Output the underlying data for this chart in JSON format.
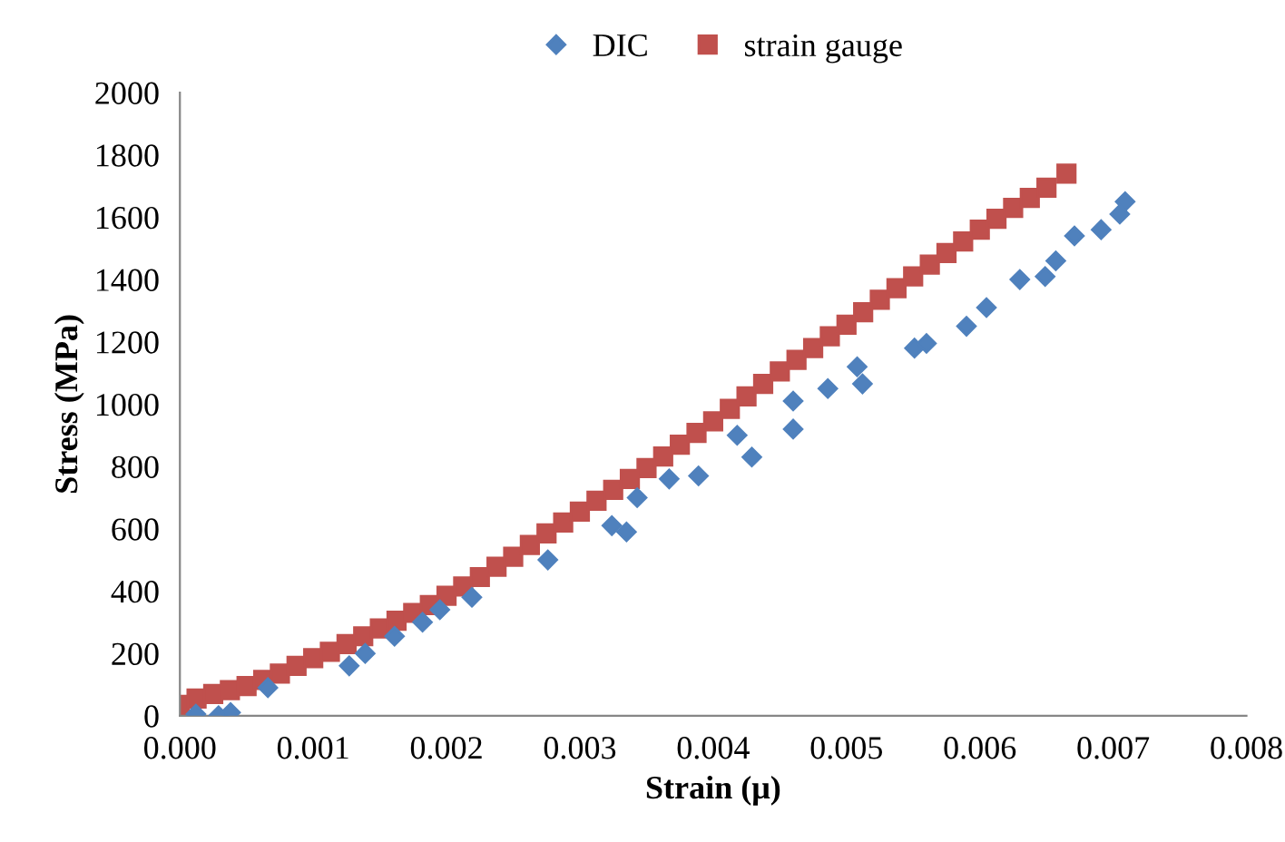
{
  "chart_data": {
    "type": "scatter",
    "xlabel": "Strain (μ)",
    "ylabel": "Stress (MPa)",
    "xlim": [
      0,
      0.008
    ],
    "ylim": [
      0,
      2000
    ],
    "xticks": [
      {
        "value": 0,
        "label": "0.000"
      },
      {
        "value": 0.001,
        "label": "0.001"
      },
      {
        "value": 0.002,
        "label": "0.002"
      },
      {
        "value": 0.003,
        "label": "0.003"
      },
      {
        "value": 0.004,
        "label": "0.004"
      },
      {
        "value": 0.005,
        "label": "0.005"
      },
      {
        "value": 0.006,
        "label": "0.006"
      },
      {
        "value": 0.007,
        "label": "0.007"
      },
      {
        "value": 0.008,
        "label": "0.008"
      }
    ],
    "yticks": [
      0,
      200,
      400,
      600,
      800,
      1000,
      1200,
      1400,
      1600,
      1800,
      2000
    ],
    "grid": false,
    "legend": "top",
    "series": [
      {
        "name": "DIC",
        "color": "#4f81bd",
        "marker": "diamond",
        "x": [
          0.00012,
          0.00029,
          0.00038,
          0.00066,
          0.00127,
          0.00139,
          0.00161,
          0.00182,
          0.00195,
          0.00219,
          0.00276,
          0.00324,
          0.00335,
          0.00343,
          0.00367,
          0.00389,
          0.00418,
          0.00429,
          0.0046,
          0.0046,
          0.00486,
          0.00508,
          0.00512,
          0.00551,
          0.0056,
          0.0059,
          0.00605,
          0.0063,
          0.00649,
          0.00657,
          0.00671,
          0.00691,
          0.00705,
          0.00709
        ],
        "values": [
          5,
          0,
          10,
          90,
          160,
          200,
          255,
          300,
          340,
          380,
          500,
          610,
          590,
          700,
          760,
          770,
          900,
          830,
          1010,
          920,
          1050,
          1120,
          1065,
          1180,
          1195,
          1250,
          1310,
          1400,
          1410,
          1460,
          1540,
          1560,
          1610,
          1650
        ]
      },
      {
        "name": "strain gauge",
        "color": "#c0504d",
        "marker": "square",
        "x": [
          0,
          0.000125,
          0.00025,
          0.000375,
          0.0005,
          0.000625,
          0.00075,
          0.000875,
          0.001,
          0.001125,
          0.00125,
          0.001375,
          0.0015,
          0.001625,
          0.00175,
          0.001875,
          0.002,
          0.002125,
          0.00225,
          0.002375,
          0.0025,
          0.002625,
          0.00275,
          0.002875,
          0.003,
          0.003125,
          0.00325,
          0.003375,
          0.0035,
          0.003625,
          0.00375,
          0.003875,
          0.004,
          0.004125,
          0.00425,
          0.004375,
          0.0045,
          0.004625,
          0.00475,
          0.004875,
          0.005,
          0.005125,
          0.00525,
          0.005375,
          0.0055,
          0.005625,
          0.00575,
          0.005875,
          0.006,
          0.006125,
          0.00625,
          0.006375,
          0.0065,
          0.00665
        ],
        "values": [
          35,
          55,
          70,
          82,
          95,
          115,
          135,
          160,
          185,
          205,
          230,
          255,
          280,
          305,
          330,
          355,
          385,
          415,
          445,
          478,
          510,
          548,
          585,
          620,
          655,
          690,
          725,
          760,
          795,
          832,
          870,
          908,
          945,
          985,
          1025,
          1065,
          1105,
          1142,
          1180,
          1218,
          1255,
          1295,
          1335,
          1372,
          1410,
          1448,
          1485,
          1522,
          1560,
          1595,
          1630,
          1662,
          1695,
          1740
        ]
      }
    ]
  }
}
